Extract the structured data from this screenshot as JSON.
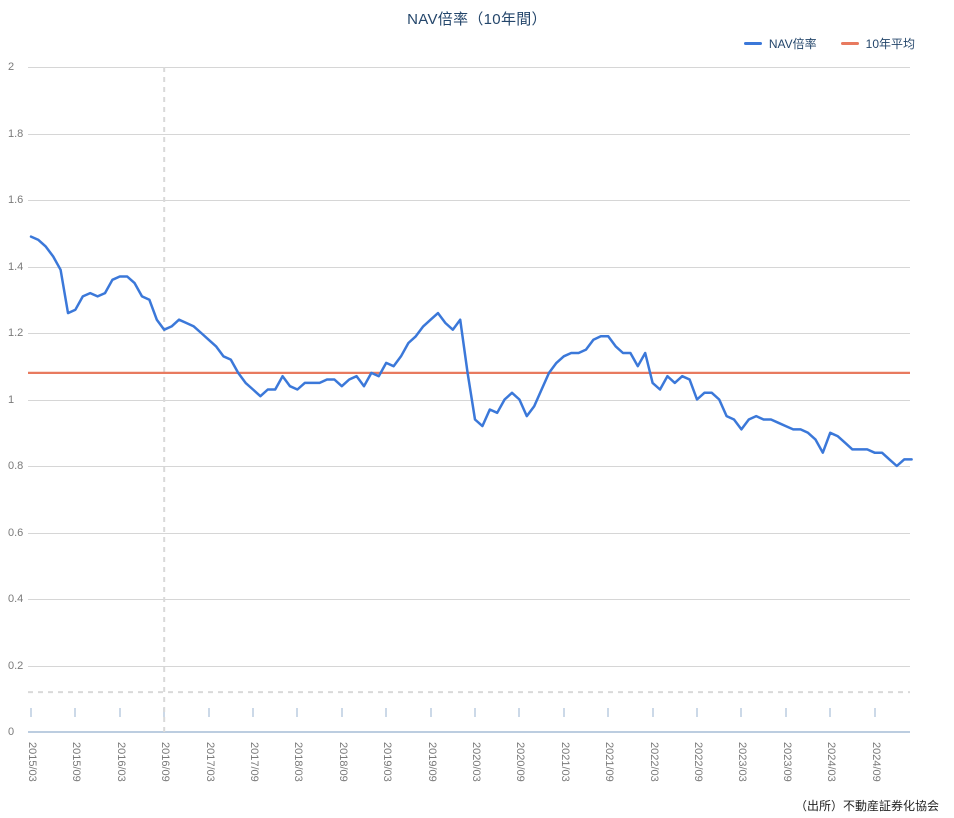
{
  "title": "NAV倍率（10年間）",
  "legend": {
    "items": [
      {
        "label": "NAV倍率",
        "color": "#3b78d9"
      },
      {
        "label": "10年平均",
        "color": "#e87a5f"
      }
    ]
  },
  "source_note": "（出所）不動産証券化協会",
  "colors": {
    "series_line": "#3b78d9",
    "average_line": "#e87a5f",
    "grid": "#d6d6d6",
    "axis": "#bccde0",
    "tick": "#ccd9e8",
    "dashed_reference": "#d9d9d9",
    "title_text": "#24466b",
    "axis_label_text": "#7a7a7a"
  },
  "chart_data": {
    "type": "line",
    "title": "NAV倍率（10年間）",
    "x_start": "2015/03",
    "x_end": "2025/02",
    "x_interval": "monthly",
    "x_tick_labels": [
      "2015/03",
      "2015/09",
      "2016/03",
      "2016/09",
      "2017/03",
      "2017/09",
      "2018/03",
      "2018/09",
      "2019/03",
      "2019/09",
      "2020/03",
      "2020/09",
      "2021/03",
      "2021/09",
      "2022/03",
      "2022/09",
      "2023/03",
      "2023/09",
      "2024/03",
      "2024/09"
    ],
    "ylim": [
      0,
      2
    ],
    "ytick_step": 0.2,
    "ytick_labels": [
      "0",
      "0.2",
      "0.4",
      "0.6",
      "0.8",
      "1",
      "1.2",
      "1.4",
      "1.6",
      "1.8",
      "2"
    ],
    "grid": true,
    "legend_position": "top-right",
    "series": [
      {
        "name": "NAV倍率",
        "type": "line",
        "color": "#3b78d9",
        "values": [
          1.49,
          1.48,
          1.46,
          1.43,
          1.39,
          1.26,
          1.27,
          1.31,
          1.32,
          1.31,
          1.32,
          1.36,
          1.37,
          1.37,
          1.35,
          1.31,
          1.3,
          1.24,
          1.21,
          1.22,
          1.24,
          1.23,
          1.22,
          1.2,
          1.18,
          1.16,
          1.13,
          1.12,
          1.08,
          1.05,
          1.03,
          1.01,
          1.03,
          1.03,
          1.07,
          1.04,
          1.03,
          1.05,
          1.05,
          1.05,
          1.06,
          1.06,
          1.04,
          1.06,
          1.07,
          1.04,
          1.08,
          1.07,
          1.11,
          1.1,
          1.13,
          1.17,
          1.19,
          1.22,
          1.24,
          1.26,
          1.23,
          1.21,
          1.24,
          1.08,
          0.94,
          0.92,
          0.97,
          0.96,
          1.0,
          1.02,
          1.0,
          0.95,
          0.98,
          1.03,
          1.08,
          1.11,
          1.13,
          1.14,
          1.14,
          1.15,
          1.18,
          1.19,
          1.19,
          1.16,
          1.14,
          1.14,
          1.1,
          1.14,
          1.05,
          1.03,
          1.07,
          1.05,
          1.07,
          1.06,
          1.0,
          1.02,
          1.02,
          1.0,
          0.95,
          0.94,
          0.91,
          0.94,
          0.95,
          0.94,
          0.94,
          0.93,
          0.92,
          0.91,
          0.91,
          0.9,
          0.88,
          0.84,
          0.9,
          0.89,
          0.87,
          0.85,
          0.85,
          0.85,
          0.84,
          0.84,
          0.82,
          0.8,
          0.82,
          0.82
        ]
      },
      {
        "name": "10年平均",
        "type": "reference-line",
        "color": "#e87a5f",
        "value": 1.08
      }
    ],
    "annotations": {
      "vertical_dashed_line_at": "2016/09",
      "horizontal_dashed_line_at": 0.12
    }
  }
}
